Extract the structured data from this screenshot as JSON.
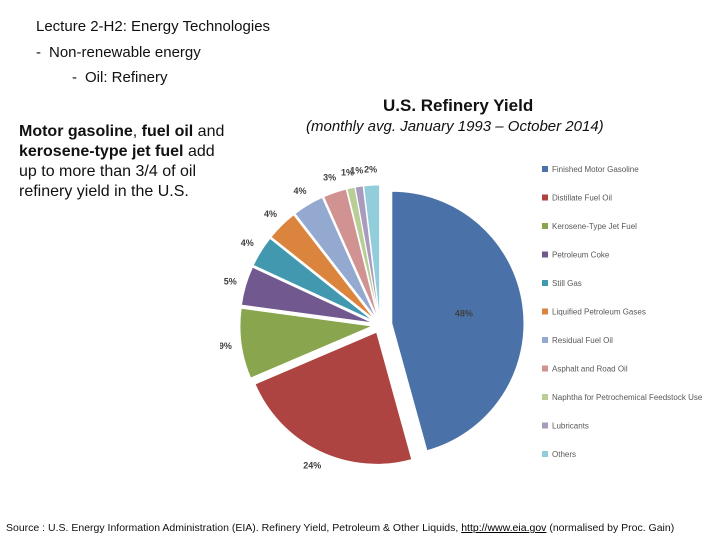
{
  "header": {
    "lecture_prefix": "Lecture 2-H2",
    "lecture_suffix": ": Energy Technologies",
    "bullet1": "Non-renewable energy",
    "bullet2": "Oil: Refinery",
    "bullet_dash": "-"
  },
  "side": {
    "p1": "Motor gasoline",
    "p2": ", ",
    "p3": "fuel oil",
    "p4": " and ",
    "p5": "kerosene-type jet fuel",
    "p6": " add up to more than 3/4 of oil refinery yield in the U.S."
  },
  "source": {
    "prefix": "Source : U.S. Energy Information Administration (EIA). Refinery  Yield, Petroleum & Other Liquids, ",
    "link": "http://www.eia.gov",
    "suffix": " (normalised by Proc. Gain)"
  },
  "chart_data": {
    "type": "pie",
    "title": "U.S. Refinery Yield",
    "subtitle": "(monthly avg. January 1993 – October 2014)",
    "legend_position": "right",
    "slices": [
      {
        "name": "Finished Motor Gasoline",
        "value": 48,
        "label": "48%",
        "color": "#4a72a8"
      },
      {
        "name": "Distillate Fuel Oil",
        "value": 24,
        "label": "24%",
        "color": "#ae4441"
      },
      {
        "name": "Kerosene-Type Jet Fuel",
        "value": 9,
        "label": "9%",
        "color": "#89a54e"
      },
      {
        "name": "Petroleum Coke",
        "value": 5,
        "label": "5%",
        "color": "#71588f"
      },
      {
        "name": "Still Gas",
        "value": 4,
        "label": "4%",
        "color": "#4198af"
      },
      {
        "name": "Liquified Petroleum Gases",
        "value": 4,
        "label": "4%",
        "color": "#db843d"
      },
      {
        "name": "Residual Fuel Oil",
        "value": 4,
        "label": "4%",
        "color": "#93a9cf"
      },
      {
        "name": "Asphalt and Road Oil",
        "value": 3,
        "label": "3%",
        "color": "#d19392"
      },
      {
        "name": "Naphtha for Petrochemical Feedstock Use",
        "value": 1,
        "label": "1%",
        "color": "#b9cd96"
      },
      {
        "name": "Lubricants",
        "value": 1,
        "label": "1%",
        "color": "#a99bbd"
      },
      {
        "name": "Others",
        "value": 2,
        "label": "2%",
        "color": "#92cddc"
      }
    ]
  }
}
